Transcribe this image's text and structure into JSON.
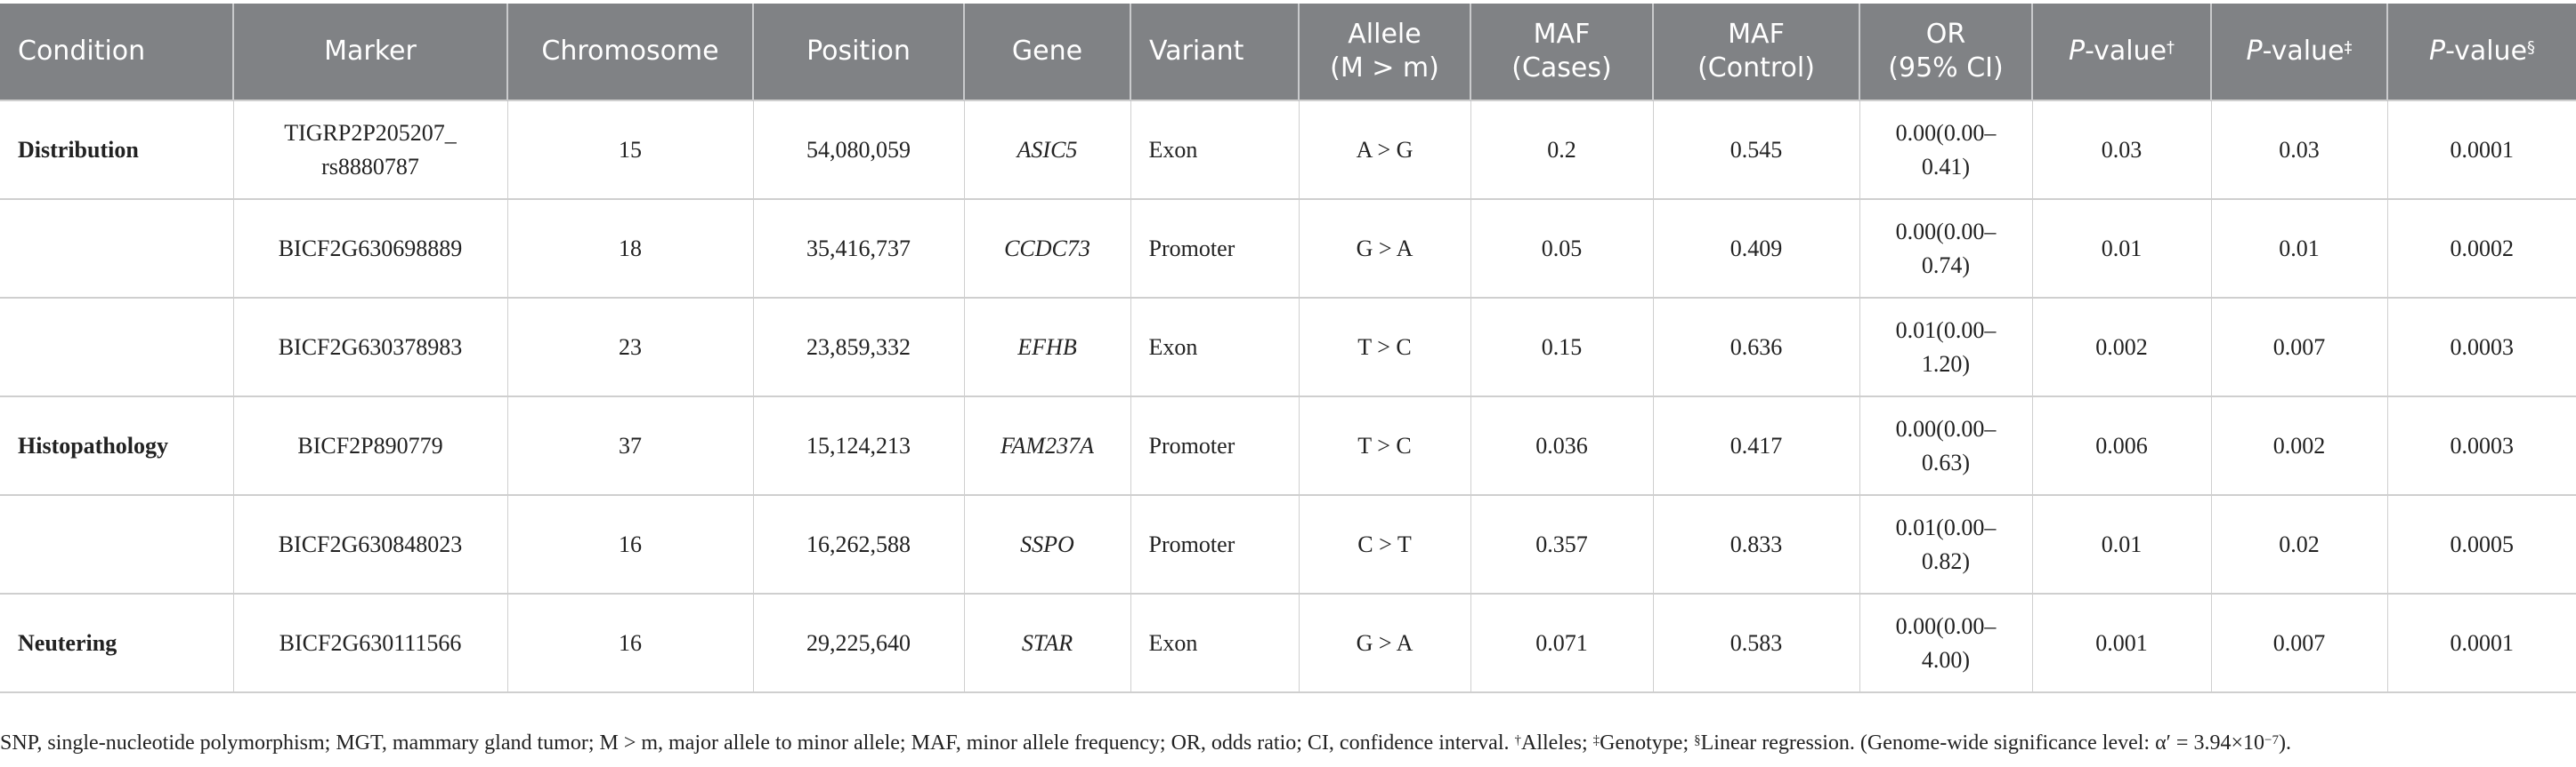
{
  "headers": [
    {
      "key": "condition",
      "label": "Condition"
    },
    {
      "key": "marker",
      "label": "Marker"
    },
    {
      "key": "chromosome",
      "label": "Chromosome"
    },
    {
      "key": "position",
      "label": "Position"
    },
    {
      "key": "gene",
      "label": "Gene"
    },
    {
      "key": "variant",
      "label": "Variant"
    },
    {
      "key": "allele",
      "label": "Allele",
      "label2": "(M > m)"
    },
    {
      "key": "maf_cases",
      "label": "MAF",
      "label2": "(Cases)"
    },
    {
      "key": "maf_control",
      "label": "MAF",
      "label2": "(Control)"
    },
    {
      "key": "or",
      "label": "OR",
      "label2": "(95% CI)"
    },
    {
      "key": "p1",
      "italic": "P",
      "label": "-value",
      "sup": "†"
    },
    {
      "key": "p2",
      "italic": "P",
      "label": "-value",
      "sup": "‡"
    },
    {
      "key": "p3",
      "italic": "P",
      "label": "-value",
      "sup": "§"
    }
  ],
  "rows": [
    {
      "condition": "Distribution",
      "marker": "TIGRP2P205207_",
      "marker2": "rs8880787",
      "chromosome": "15",
      "position": "54,080,059",
      "gene": "ASIC5",
      "variant": "Exon",
      "allele": "A > G",
      "maf_cases": "0.2",
      "maf_control": "0.545",
      "or": "0.00(0.00–",
      "or2": "0.41)",
      "p1": "0.03",
      "p2": "0.03",
      "p3": "0.0001"
    },
    {
      "condition": "",
      "marker": "BICF2G630698889",
      "marker2": "",
      "chromosome": "18",
      "position": "35,416,737",
      "gene": "CCDC73",
      "variant": "Promoter",
      "allele": "G > A",
      "maf_cases": "0.05",
      "maf_control": "0.409",
      "or": "0.00(0.00–",
      "or2": "0.74)",
      "p1": "0.01",
      "p2": "0.01",
      "p3": "0.0002"
    },
    {
      "condition": "",
      "marker": "BICF2G630378983",
      "marker2": "",
      "chromosome": "23",
      "position": "23,859,332",
      "gene": "EFHB",
      "variant": "Exon",
      "allele": "T > C",
      "maf_cases": "0.15",
      "maf_control": "0.636",
      "or": "0.01(0.00–",
      "or2": "1.20)",
      "p1": "0.002",
      "p2": "0.007",
      "p3": "0.0003"
    },
    {
      "condition": "Histopathology",
      "marker": "BICF2P890779",
      "marker2": "",
      "chromosome": "37",
      "position": "15,124,213",
      "gene": "FAM237A",
      "variant": "Promoter",
      "allele": "T > C",
      "maf_cases": "0.036",
      "maf_control": "0.417",
      "or": "0.00(0.00–",
      "or2": "0.63)",
      "p1": "0.006",
      "p2": "0.002",
      "p3": "0.0003"
    },
    {
      "condition": "",
      "marker": "BICF2G630848023",
      "marker2": "",
      "chromosome": "16",
      "position": "16,262,588",
      "gene": "SSPO",
      "variant": "Promoter",
      "allele": "C > T",
      "maf_cases": "0.357",
      "maf_control": "0.833",
      "or": "0.01(0.00–",
      "or2": "0.82)",
      "p1": "0.01",
      "p2": "0.02",
      "p3": "0.0005"
    },
    {
      "condition": "Neutering",
      "marker": "BICF2G630111566",
      "marker2": "",
      "chromosome": "16",
      "position": "29,225,640",
      "gene": "STAR",
      "variant": "Exon",
      "allele": "G > A",
      "maf_cases": "0.071",
      "maf_control": "0.583",
      "or": "0.00(0.00–",
      "or2": "4.00)",
      "p1": "0.001",
      "p2": "0.007",
      "p3": "0.0001"
    }
  ],
  "footnote": {
    "main": "SNP, single-nucleotide polymorphism; MGT, mammary gland tumor; M > m, major allele to minor allele; MAF, minor allele frequency; OR, odds ratio; CI, confidence interval. ",
    "sup1": "†",
    "t1": "Alleles; ",
    "sup2": "‡",
    "t2": "Genotype; ",
    "sup3": "§",
    "t3": "Linear regression. (Genome-wide significance level: α′ = 3.94×10",
    "exp": "−7",
    "end": ")."
  }
}
